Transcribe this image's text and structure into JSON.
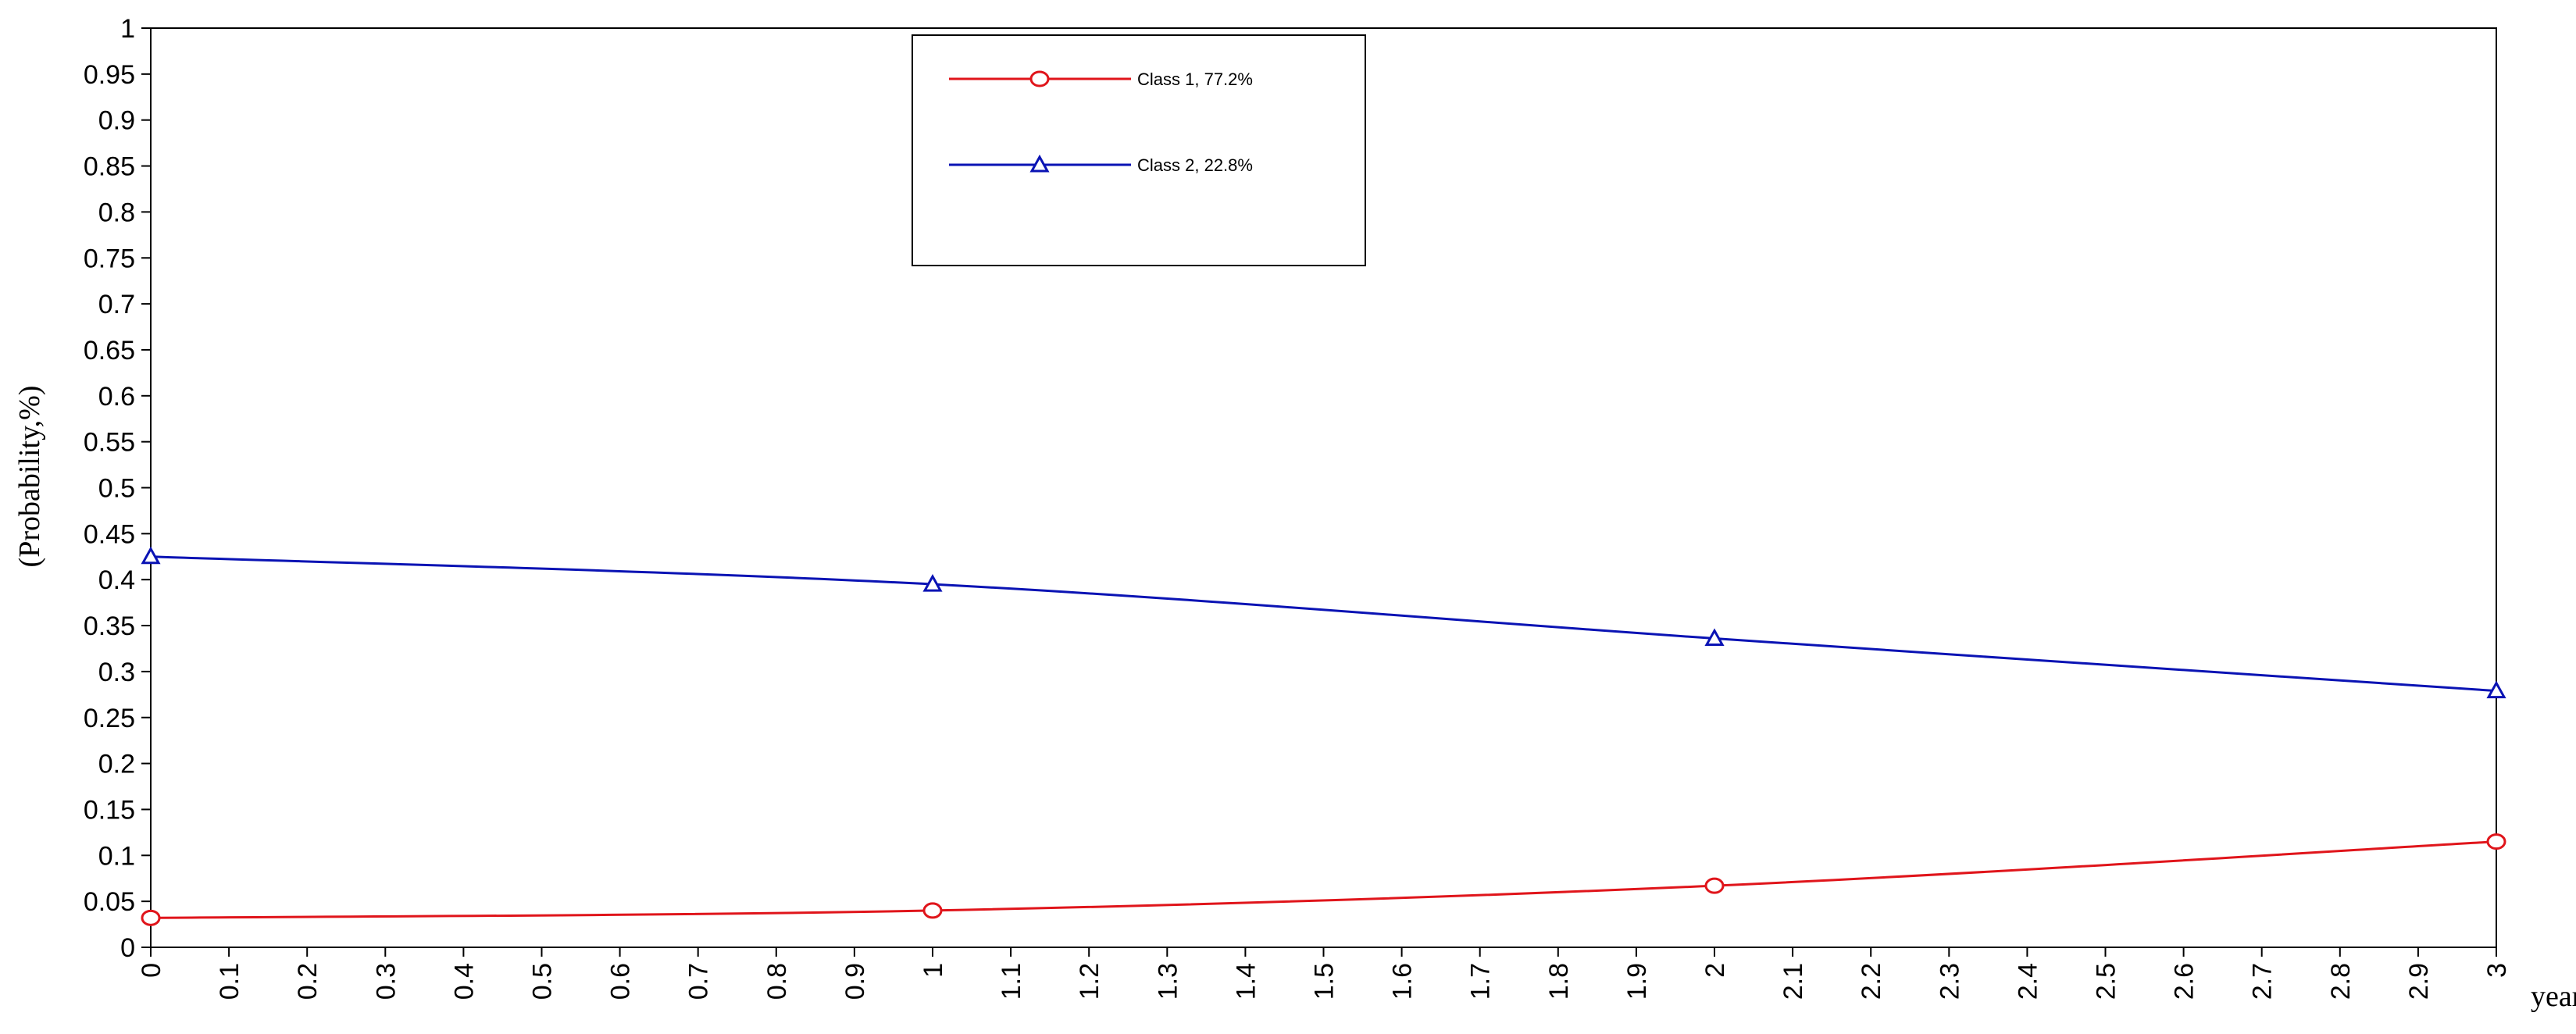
{
  "chart_data": {
    "type": "line",
    "title": "",
    "xlabel": "year",
    "ylabel": "(Probability,%)",
    "xlim": [
      0,
      3
    ],
    "ylim": [
      0,
      1
    ],
    "x_ticks": [
      "0",
      "0.1",
      "0.2",
      "0.3",
      "0.4",
      "0.5",
      "0.6",
      "0.7",
      "0.8",
      "0.9",
      "1",
      "1.1",
      "1.2",
      "1.3",
      "1.4",
      "1.5",
      "1.6",
      "1.7",
      "1.8",
      "1.9",
      "2",
      "2.1",
      "2.2",
      "2.3",
      "2.4",
      "2.5",
      "2.6",
      "2.7",
      "2.8",
      "2.9",
      "3"
    ],
    "y_ticks": [
      "0",
      "0.05",
      "0.1",
      "0.15",
      "0.2",
      "0.25",
      "0.3",
      "0.35",
      "0.4",
      "0.45",
      "0.5",
      "0.55",
      "0.6",
      "0.65",
      "0.7",
      "0.75",
      "0.8",
      "0.85",
      "0.9",
      "0.95",
      "1"
    ],
    "grid": false,
    "legend_position": "top-center",
    "x": [
      0,
      1,
      2,
      3
    ],
    "series": [
      {
        "name": "Class 1, 77.2%",
        "color": "#e0151b",
        "marker": "circle",
        "values": [
          0.032,
          0.04,
          0.067,
          0.115
        ]
      },
      {
        "name": "Class 2, 22.8%",
        "color": "#0a13b4",
        "marker": "triangle",
        "values": [
          0.425,
          0.395,
          0.336,
          0.279
        ]
      }
    ]
  }
}
